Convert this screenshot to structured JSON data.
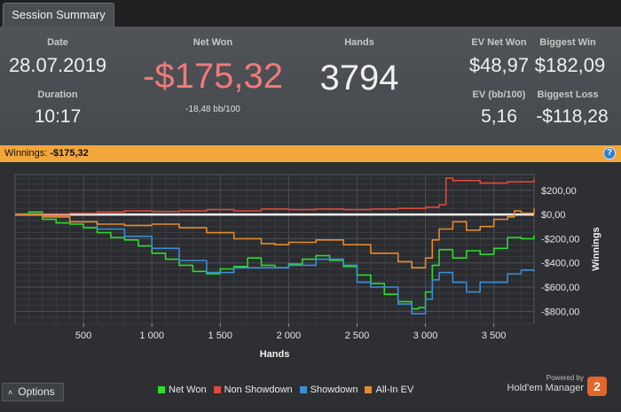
{
  "tab": {
    "label": "Session Summary"
  },
  "summary": {
    "date_label": "Date",
    "date_value": "28.07.2019",
    "duration_label": "Duration",
    "duration_value": "10:17",
    "net_won_label": "Net Won",
    "net_won_value": "-$175,32",
    "net_won_sub": "-18,48 bb/100",
    "hands_label": "Hands",
    "hands_value": "3794",
    "ev_net_won_label": "EV Net Won",
    "ev_net_won_value": "$48,97",
    "biggest_win_label": "Biggest Win",
    "biggest_win_value": "$182,09",
    "ev_bb_label": "EV (bb/100)",
    "ev_bb_value": "5,16",
    "biggest_loss_label": "Biggest Loss",
    "biggest_loss_value": "-$118,28"
  },
  "banner": {
    "label": "Winnings:",
    "value": "-$175,32"
  },
  "colors": {
    "net_won": "#2ddc2d",
    "non_showdown": "#e0483a",
    "showdown": "#3a8ed8",
    "all_in_ev": "#e68a2e",
    "negative": "#f07a7a",
    "banner": "#f3a63a"
  },
  "chart_data": {
    "type": "line",
    "xlabel": "Hands",
    "ylabel": "Winnings",
    "xlim": [
      0,
      3794
    ],
    "ylim": [
      -900,
      330
    ],
    "x_ticks": [
      500,
      1000,
      1500,
      2000,
      2500,
      3000,
      3500
    ],
    "x_tick_labels": [
      "500",
      "1 000",
      "1 500",
      "2 000",
      "2 500",
      "3 000",
      "3 500"
    ],
    "y_ticks": [
      200,
      0,
      -200,
      -400,
      -600,
      -800
    ],
    "y_tick_labels": [
      "$200,00",
      "$0,00",
      "-$200,00",
      "-$400,00",
      "-$600,00",
      "-$800,00"
    ],
    "legend_position": "bottom",
    "grid": true,
    "series": [
      {
        "name": "Net Won",
        "color": "#2ddc2d",
        "x": [
          0,
          100,
          200,
          300,
          400,
          500,
          600,
          700,
          800,
          900,
          1000,
          1100,
          1200,
          1300,
          1400,
          1500,
          1600,
          1700,
          1800,
          1900,
          2000,
          2100,
          2200,
          2300,
          2400,
          2500,
          2600,
          2700,
          2800,
          2900,
          2950,
          3000,
          3050,
          3100,
          3200,
          3300,
          3400,
          3500,
          3600,
          3700,
          3794
        ],
        "values": [
          0,
          20,
          -40,
          -70,
          -80,
          -110,
          -150,
          -190,
          -210,
          -260,
          -320,
          -370,
          -420,
          -470,
          -490,
          -450,
          -430,
          -360,
          -420,
          -440,
          -410,
          -370,
          -340,
          -380,
          -430,
          -500,
          -570,
          -660,
          -720,
          -780,
          -770,
          -640,
          -420,
          -290,
          -360,
          -300,
          -330,
          -280,
          -190,
          -200,
          -175
        ]
      },
      {
        "name": "Non Showdown",
        "color": "#e0483a",
        "x": [
          0,
          200,
          400,
          600,
          800,
          1000,
          1200,
          1400,
          1600,
          1800,
          2000,
          2200,
          2400,
          2600,
          2800,
          3000,
          3100,
          3150,
          3200,
          3400,
          3600,
          3794
        ],
        "values": [
          0,
          5,
          10,
          20,
          30,
          25,
          30,
          40,
          30,
          45,
          40,
          45,
          40,
          45,
          50,
          60,
          80,
          300,
          280,
          260,
          270,
          290
        ]
      },
      {
        "name": "Showdown",
        "color": "#3a8ed8",
        "x": [
          0,
          200,
          400,
          600,
          800,
          1000,
          1200,
          1400,
          1600,
          1800,
          2000,
          2200,
          2400,
          2500,
          2600,
          2800,
          2900,
          3000,
          3050,
          3100,
          3200,
          3300,
          3400,
          3500,
          3600,
          3700,
          3794
        ],
        "values": [
          0,
          -20,
          -60,
          -120,
          -180,
          -280,
          -380,
          -480,
          -440,
          -440,
          -420,
          -370,
          -420,
          -560,
          -600,
          -740,
          -820,
          -700,
          -540,
          -480,
          -560,
          -640,
          -560,
          -560,
          -490,
          -460,
          -470
        ]
      },
      {
        "name": "All-In EV",
        "color": "#e68a2e",
        "x": [
          0,
          200,
          400,
          600,
          800,
          1000,
          1200,
          1400,
          1600,
          1800,
          1900,
          2000,
          2200,
          2400,
          2600,
          2800,
          2900,
          3000,
          3050,
          3100,
          3200,
          3300,
          3400,
          3500,
          3600,
          3650,
          3700,
          3794
        ],
        "values": [
          0,
          -20,
          -60,
          -80,
          -90,
          -80,
          -110,
          -150,
          -200,
          -240,
          -250,
          -230,
          -210,
          -250,
          -320,
          -390,
          -440,
          -360,
          -210,
          -120,
          -60,
          -130,
          -100,
          -40,
          -20,
          30,
          10,
          49
        ]
      }
    ]
  },
  "legend": [
    {
      "label": "Net Won",
      "color": "#2ddc2d"
    },
    {
      "label": "Non Showdown",
      "color": "#e0483a"
    },
    {
      "label": "Showdown",
      "color": "#3a8ed8"
    },
    {
      "label": "All-In EV",
      "color": "#e68a2e"
    }
  ],
  "footer": {
    "options_label": "Options",
    "powered_by": "Powered by",
    "brand": "Hold'em Manager",
    "brand_logo_text": "2"
  }
}
